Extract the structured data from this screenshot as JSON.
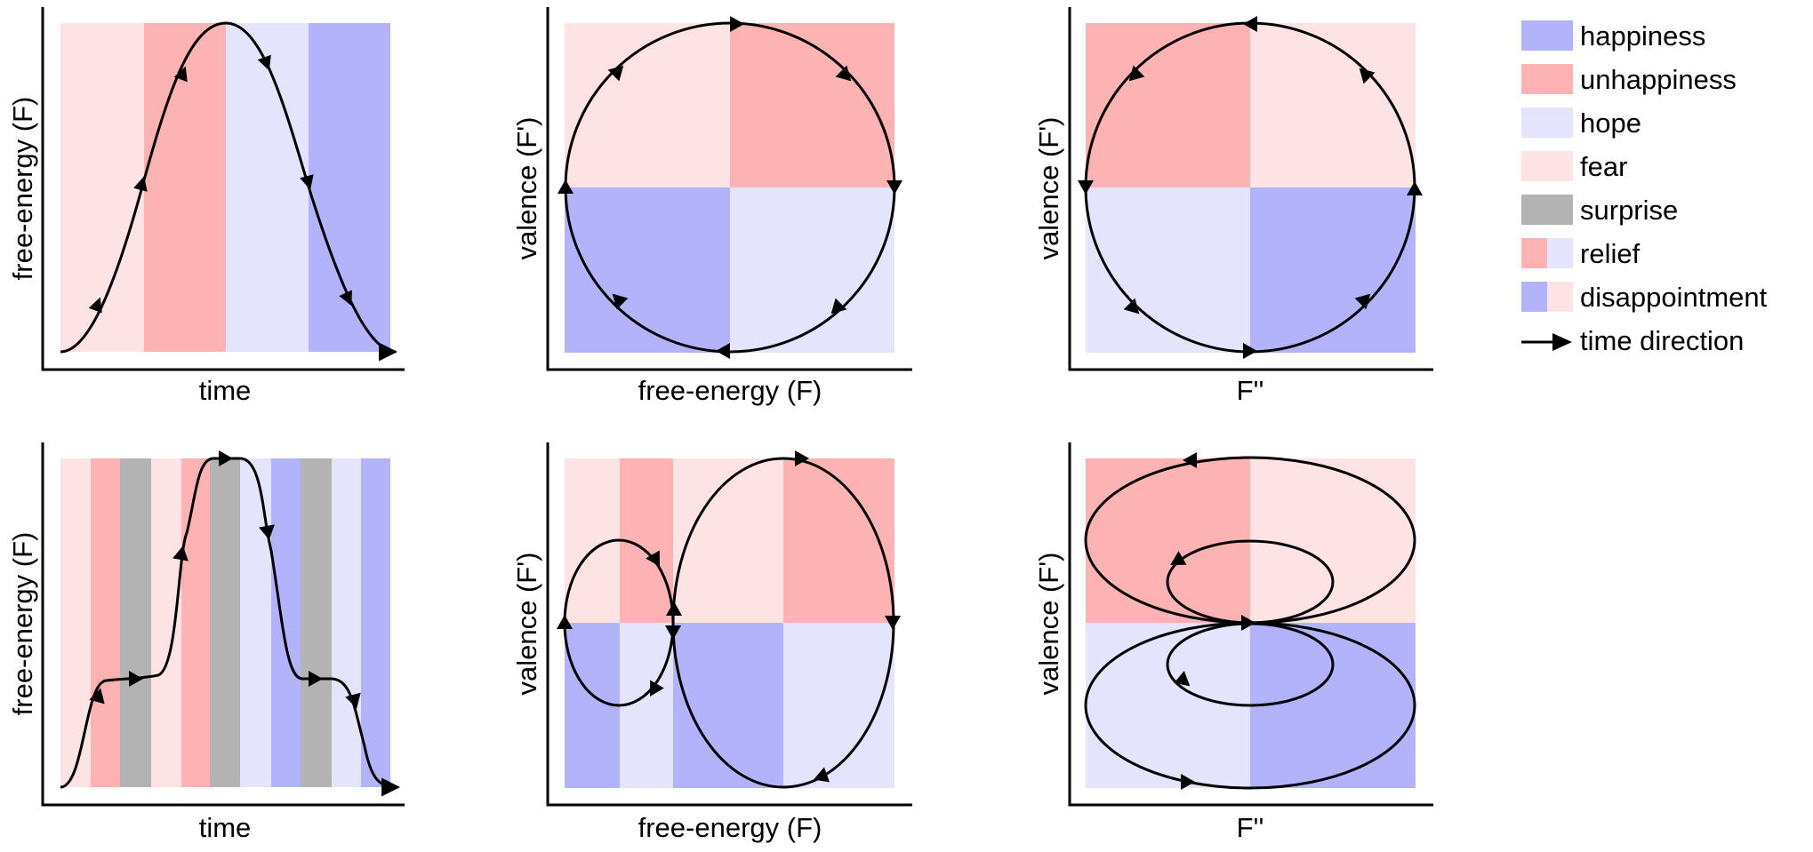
{
  "colors": {
    "happiness": "#b3b3fc",
    "unhappiness": "#fdb3b3",
    "hope": "#e4e4fd",
    "fear": "#fde3e3",
    "surprise": "#b3b3b3"
  },
  "legend": [
    {
      "label": "happiness",
      "swatch": [
        "happiness"
      ]
    },
    {
      "label": "unhappiness",
      "swatch": [
        "unhappiness"
      ]
    },
    {
      "label": "hope",
      "swatch": [
        "hope"
      ]
    },
    {
      "label": "fear",
      "swatch": [
        "fear"
      ]
    },
    {
      "label": "surprise",
      "swatch": [
        "surprise"
      ]
    },
    {
      "label": "relief",
      "swatch": [
        "unhappiness",
        "hope"
      ]
    },
    {
      "label": "disappointment",
      "swatch": [
        "happiness",
        "fear"
      ]
    },
    {
      "label": "time direction",
      "swatch": [
        "arrow"
      ]
    }
  ],
  "panels": {
    "top_left": {
      "xlabel": "time",
      "ylabel": "free-energy (F)",
      "bands": [
        "fear",
        "unhappiness",
        "hope",
        "happiness"
      ]
    },
    "top_mid": {
      "xlabel": "free-energy (F)",
      "ylabel": "valence (F')",
      "quadrants": {
        "tl": "fear",
        "tr": "unhappiness",
        "bl": "happiness",
        "br": "hope"
      }
    },
    "top_right": {
      "xlabel": "F''",
      "ylabel": "valence (F')",
      "quadrants": {
        "tl": "unhappiness",
        "tr": "fear",
        "bl": "hope",
        "br": "happiness"
      }
    },
    "bottom_left": {
      "xlabel": "time",
      "ylabel": "free-energy (F)",
      "bands": [
        "fear",
        "unhappiness",
        "surprise",
        "fear",
        "unhappiness",
        "surprise",
        "hope",
        "happiness",
        "surprise",
        "hope",
        "happiness"
      ]
    },
    "bottom_mid": {
      "xlabel": "free-energy (F)",
      "ylabel": "valence (F')",
      "top_bands": [
        "fear",
        "unhappiness",
        "fear",
        "unhappiness"
      ],
      "bottom_bands": [
        "happiness",
        "hope",
        "happiness",
        "hope"
      ]
    },
    "bottom_right": {
      "xlabel": "F''",
      "ylabel": "valence (F')",
      "quadrants": {
        "tl": "unhappiness",
        "tr": "fear",
        "bl": "hope",
        "br": "happiness"
      }
    }
  }
}
